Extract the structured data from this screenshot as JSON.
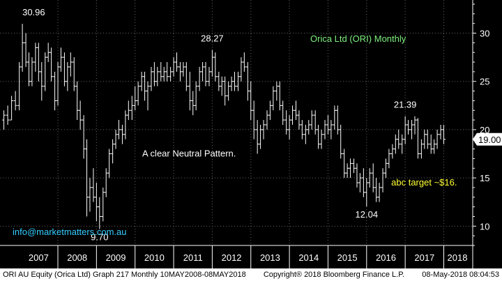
{
  "footer": {
    "left": "ORI AU Equity (Orica Ltd)  Graph 217  Monthly 10MAY2008-08MAY2018",
    "middle": "Copyright® 2018 Bloomberg Finance L.P.",
    "right": "08-May-2018 08:04:53"
  },
  "chart_data": {
    "type": "bar",
    "subtype": "ohlc",
    "title": "Orica Ltd (ORI) Monthly",
    "ylim": [
      8,
      33
    ],
    "y_ticks": [
      10,
      15,
      20,
      25,
      30
    ],
    "x_ticks": [
      "2007",
      "2008",
      "2009",
      "2010",
      "2011",
      "2012",
      "2013",
      "2014",
      "2015",
      "2016",
      "2017",
      "2018"
    ],
    "xlim": [
      2006.5,
      2018.75
    ],
    "last_price": "19.00",
    "annotations": [
      {
        "text": "30.96",
        "x": 2007.08,
        "y": 30.96
      },
      {
        "text": "28.27",
        "x": 2012.0,
        "y": 28.27
      },
      {
        "text": "9.70",
        "x": 2009.08,
        "y": 9.7
      },
      {
        "text": "12.04",
        "x": 2016.0,
        "y": 12.04
      },
      {
        "text": "21.39",
        "x": 2017.0,
        "y": 21.39
      },
      {
        "text": "A clear Neutral Pattern.",
        "x": 2011.4,
        "y": 17.2
      },
      {
        "text": "abc target ~$16.",
        "x": 2017.0,
        "y": 14.2
      }
    ],
    "watermark": "info@marketmatters.com.au",
    "series": [
      {
        "values": [
          [
            2006.6,
            21,
            22,
            20,
            21.5
          ],
          [
            2006.7,
            21.5,
            22.5,
            20.5,
            21
          ],
          [
            2006.8,
            21,
            23.5,
            21,
            23
          ],
          [
            2006.9,
            23,
            24,
            22,
            22.5
          ],
          [
            2007.0,
            22.5,
            27,
            22,
            26.5
          ],
          [
            2007.08,
            26.5,
            30.96,
            26,
            29
          ],
          [
            2007.17,
            29,
            30,
            26.5,
            27
          ],
          [
            2007.25,
            27,
            28,
            24.5,
            25
          ],
          [
            2007.33,
            25,
            27.5,
            24.5,
            27
          ],
          [
            2007.42,
            27,
            29,
            26,
            28.5
          ],
          [
            2007.5,
            28.5,
            29,
            25,
            26
          ],
          [
            2007.58,
            26,
            27,
            23,
            24.5
          ],
          [
            2007.67,
            24.5,
            28,
            24,
            27.5
          ],
          [
            2007.75,
            27.5,
            29,
            27,
            28
          ],
          [
            2007.83,
            28,
            28.5,
            25,
            25.5
          ],
          [
            2007.92,
            25.5,
            26,
            22,
            23
          ],
          [
            2008.0,
            23,
            27,
            22.5,
            26.5
          ],
          [
            2008.08,
            26.5,
            28.5,
            26,
            27.5
          ],
          [
            2008.17,
            27.5,
            28,
            24.5,
            25
          ],
          [
            2008.25,
            25,
            27,
            24,
            26.5
          ],
          [
            2008.33,
            26.5,
            28,
            25.5,
            27
          ],
          [
            2008.42,
            27,
            27.5,
            24,
            24.5
          ],
          [
            2008.5,
            24.5,
            25,
            21,
            22
          ],
          [
            2008.58,
            22,
            23,
            20,
            21
          ],
          [
            2008.67,
            21,
            21.5,
            17,
            18
          ],
          [
            2008.75,
            18,
            19,
            11,
            13
          ],
          [
            2008.83,
            13,
            15,
            11.5,
            14
          ],
          [
            2008.92,
            14,
            16,
            12.5,
            13
          ],
          [
            2009.0,
            13,
            14.5,
            10.5,
            12
          ],
          [
            2009.08,
            12,
            13,
            9.7,
            11
          ],
          [
            2009.17,
            11,
            14,
            10.5,
            13.5
          ],
          [
            2009.25,
            13.5,
            16,
            13,
            15.5
          ],
          [
            2009.33,
            15.5,
            18,
            15,
            17.5
          ],
          [
            2009.42,
            17.5,
            19,
            16.5,
            18.5
          ],
          [
            2009.5,
            18.5,
            20,
            18,
            19.5
          ],
          [
            2009.58,
            19.5,
            21,
            19,
            20
          ],
          [
            2009.67,
            20,
            20.5,
            18.5,
            19.5
          ],
          [
            2009.75,
            19.5,
            22,
            19,
            21.5
          ],
          [
            2009.83,
            21.5,
            23,
            21,
            22
          ],
          [
            2009.92,
            22,
            23.5,
            21,
            22.5
          ],
          [
            2010.0,
            22.5,
            24.5,
            22,
            23
          ],
          [
            2010.08,
            23,
            25,
            22.5,
            24.5
          ],
          [
            2010.17,
            24.5,
            26,
            24,
            25.5
          ],
          [
            2010.25,
            25.5,
            26,
            23,
            24
          ],
          [
            2010.33,
            24,
            25,
            22,
            24.5
          ],
          [
            2010.42,
            24.5,
            26.5,
            24,
            26
          ],
          [
            2010.5,
            26,
            27,
            24.5,
            25
          ],
          [
            2010.58,
            25,
            26.5,
            24.5,
            26
          ],
          [
            2010.67,
            26,
            27,
            25,
            25.5
          ],
          [
            2010.75,
            25.5,
            26.5,
            25,
            26
          ],
          [
            2010.83,
            26,
            27,
            25,
            25.5
          ],
          [
            2010.92,
            25.5,
            26.5,
            25,
            26
          ],
          [
            2011.0,
            26,
            27.5,
            25.5,
            27
          ],
          [
            2011.08,
            27,
            28,
            26,
            26.5
          ],
          [
            2011.17,
            26.5,
            27,
            25,
            26
          ],
          [
            2011.25,
            26,
            27,
            25.5,
            26.5
          ],
          [
            2011.33,
            26.5,
            27,
            24,
            24.5
          ],
          [
            2011.42,
            24.5,
            26,
            22,
            23
          ],
          [
            2011.5,
            23,
            24,
            21.5,
            22.5
          ],
          [
            2011.58,
            22.5,
            25,
            22,
            24.5
          ],
          [
            2011.67,
            24.5,
            26.5,
            24,
            26
          ],
          [
            2011.75,
            26,
            27,
            25,
            26.5
          ],
          [
            2011.83,
            26.5,
            27,
            24.5,
            25
          ],
          [
            2011.92,
            25,
            26.5,
            24.5,
            26
          ],
          [
            2012.0,
            26,
            28.27,
            25.5,
            27.5
          ],
          [
            2012.08,
            27.5,
            28,
            25,
            25.5
          ],
          [
            2012.17,
            25.5,
            26,
            24,
            24.5
          ],
          [
            2012.25,
            24.5,
            25.5,
            23.5,
            25
          ],
          [
            2012.33,
            25,
            25.5,
            22.5,
            23.5
          ],
          [
            2012.42,
            23.5,
            25,
            23,
            24.5
          ],
          [
            2012.5,
            24.5,
            25.5,
            24,
            25
          ],
          [
            2012.58,
            25,
            26,
            24,
            24.5
          ],
          [
            2012.67,
            24.5,
            26,
            24,
            25.5
          ],
          [
            2012.75,
            25.5,
            27.5,
            25,
            27
          ],
          [
            2012.83,
            27,
            28,
            26,
            26.5
          ],
          [
            2012.92,
            26.5,
            27,
            23,
            24
          ],
          [
            2013.0,
            24,
            25,
            21,
            22
          ],
          [
            2013.08,
            22,
            23,
            19,
            20
          ],
          [
            2013.17,
            20,
            21,
            17.5,
            18.5
          ],
          [
            2013.25,
            18.5,
            20.5,
            18,
            20
          ],
          [
            2013.33,
            20,
            21,
            19,
            20.5
          ],
          [
            2013.42,
            20.5,
            22,
            20,
            21.5
          ],
          [
            2013.5,
            21.5,
            23,
            21,
            22.5
          ],
          [
            2013.58,
            22.5,
            24.5,
            22,
            24
          ],
          [
            2013.67,
            24,
            25,
            23,
            24.5
          ],
          [
            2013.75,
            24.5,
            25,
            22,
            22.5
          ],
          [
            2013.83,
            22.5,
            23,
            20.5,
            21
          ],
          [
            2013.92,
            21,
            22,
            19.5,
            20
          ],
          [
            2014.0,
            20,
            21.5,
            19,
            21
          ],
          [
            2014.08,
            21,
            22.5,
            20.5,
            22
          ],
          [
            2014.17,
            22,
            23,
            21,
            21.5
          ],
          [
            2014.25,
            21.5,
            22,
            20,
            20.5
          ],
          [
            2014.33,
            20.5,
            21,
            19,
            19.5
          ],
          [
            2014.42,
            19.5,
            20.5,
            18.5,
            20
          ],
          [
            2014.5,
            20,
            21,
            19.5,
            20.5
          ],
          [
            2014.58,
            20.5,
            22,
            20,
            21.5
          ],
          [
            2014.67,
            21.5,
            22,
            19.5,
            20
          ],
          [
            2014.75,
            20,
            20.5,
            18,
            18.5
          ],
          [
            2014.83,
            18.5,
            20,
            18,
            19.5
          ],
          [
            2014.92,
            19.5,
            21,
            19,
            20.5
          ],
          [
            2015.0,
            20.5,
            21.5,
            19.5,
            20
          ],
          [
            2015.08,
            20,
            21,
            19,
            20.5
          ],
          [
            2015.17,
            20.5,
            22.5,
            20,
            22
          ],
          [
            2015.25,
            22,
            22.5,
            19.5,
            20
          ],
          [
            2015.33,
            20,
            20.5,
            17,
            17.5
          ],
          [
            2015.42,
            17.5,
            18,
            15,
            15.5
          ],
          [
            2015.5,
            15.5,
            16.5,
            15,
            16
          ],
          [
            2015.58,
            16,
            17,
            15,
            16.5
          ],
          [
            2015.67,
            16.5,
            17,
            15.5,
            16
          ],
          [
            2015.75,
            16,
            16.5,
            14,
            14.5
          ],
          [
            2015.83,
            14.5,
            15.5,
            13.5,
            15
          ],
          [
            2015.92,
            15,
            16,
            13,
            13.5
          ],
          [
            2016.0,
            13.5,
            15,
            12.04,
            14.5
          ],
          [
            2016.08,
            14.5,
            16,
            14,
            15.5
          ],
          [
            2016.17,
            15.5,
            16.5,
            13.5,
            14
          ],
          [
            2016.25,
            14,
            15,
            12.5,
            13
          ],
          [
            2016.33,
            13,
            14.5,
            12.5,
            14
          ],
          [
            2016.42,
            14,
            16,
            13.5,
            15.5
          ],
          [
            2016.5,
            15.5,
            17,
            15,
            16.5
          ],
          [
            2016.58,
            16.5,
            18,
            16,
            17.5
          ],
          [
            2016.67,
            17.5,
            18.5,
            17,
            18
          ],
          [
            2016.75,
            18,
            19.5,
            17.5,
            19
          ],
          [
            2016.83,
            19,
            20,
            18,
            18.5
          ],
          [
            2016.92,
            18.5,
            19.5,
            17.5,
            19
          ],
          [
            2017.0,
            19,
            21.39,
            18.5,
            20.5
          ],
          [
            2017.08,
            20.5,
            21,
            19.5,
            20
          ],
          [
            2017.17,
            20,
            21,
            19,
            20.5
          ],
          [
            2017.25,
            20.5,
            21.39,
            19.5,
            21
          ],
          [
            2017.33,
            21,
            21.2,
            17,
            17.5
          ],
          [
            2017.42,
            17.5,
            19,
            17,
            18.5
          ],
          [
            2017.5,
            18.5,
            20,
            18,
            19.5
          ],
          [
            2017.58,
            19.5,
            20,
            18,
            18.5
          ],
          [
            2017.67,
            18.5,
            19.5,
            17.5,
            18
          ],
          [
            2017.75,
            18,
            19,
            17.5,
            18.5
          ],
          [
            2017.83,
            18.5,
            20,
            18,
            19.5
          ],
          [
            2017.92,
            19.5,
            20.5,
            19,
            20
          ],
          [
            2018.0,
            20,
            20.5,
            18.5,
            19
          ]
        ]
      }
    ],
    "colors": {
      "background": "#000000",
      "ohlc": "#ffffff",
      "title": "#7ef07e",
      "target": "#ffff33",
      "watermark": "#33ccff",
      "text": "#ffffff",
      "axis": "#ffffff",
      "grid": "#666666"
    }
  }
}
